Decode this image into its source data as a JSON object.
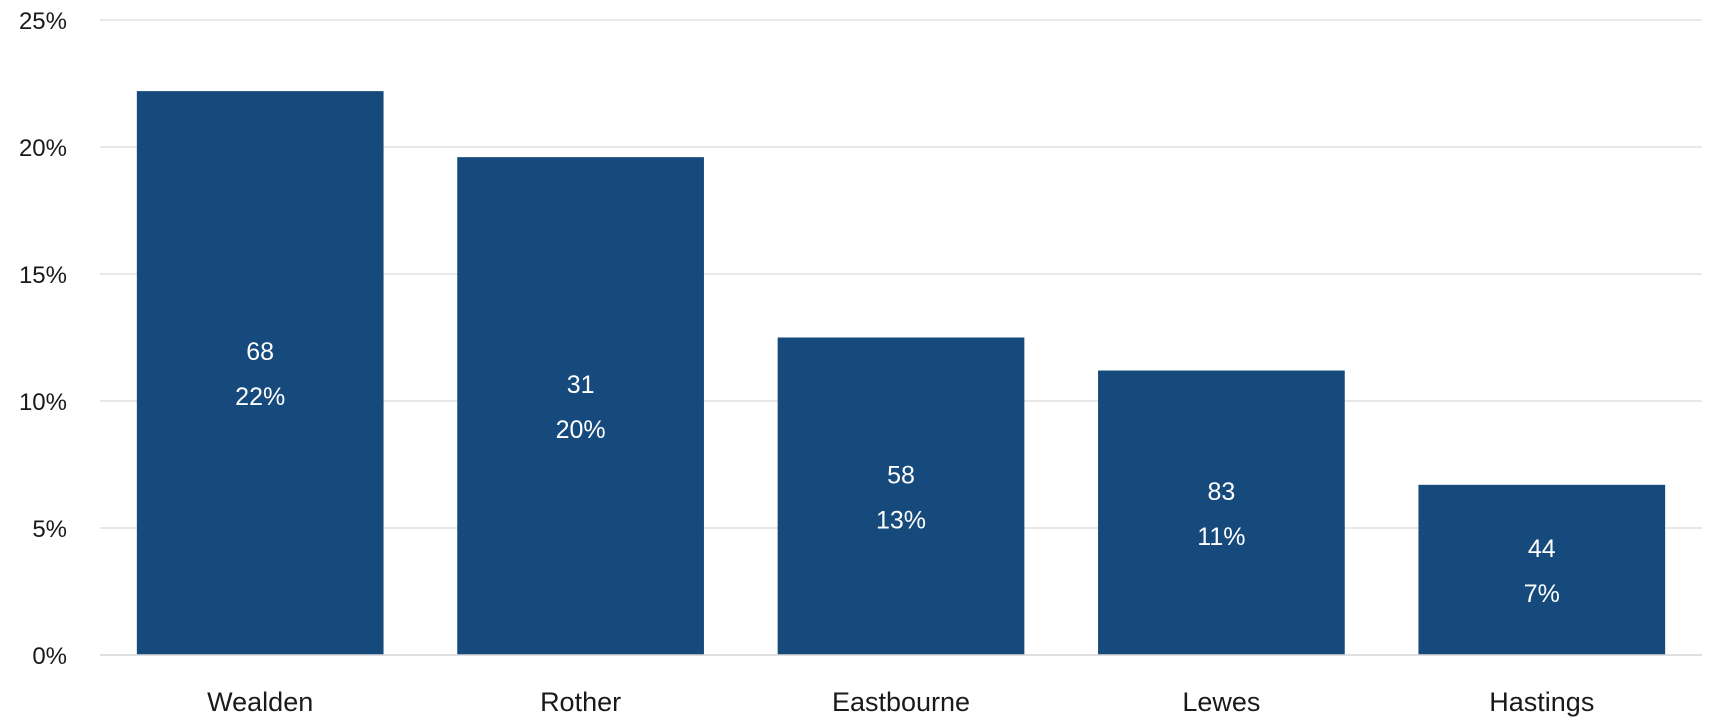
{
  "chart_data": {
    "type": "bar",
    "categories": [
      "Wealden",
      "Rother",
      "Eastbourne",
      "Lewes",
      "Hastings"
    ],
    "values": [
      22.2,
      19.6,
      12.5,
      11.2,
      6.7
    ],
    "counts": [
      "68",
      "31",
      "58",
      "83",
      "44"
    ],
    "percent_labels": [
      "22%",
      "20%",
      "13%",
      "11%",
      "7%"
    ],
    "y_ticks": [
      0,
      5,
      10,
      15,
      20,
      25
    ],
    "y_tick_labels": [
      "0%",
      "5%",
      "10%",
      "15%",
      "20%",
      "25%"
    ],
    "ylim": [
      0,
      25
    ],
    "title": "",
    "xlabel": "",
    "ylabel": "",
    "grid": true,
    "legend": "none",
    "bar_color": "#174a7c",
    "grid_color": "#d9d9d9"
  }
}
